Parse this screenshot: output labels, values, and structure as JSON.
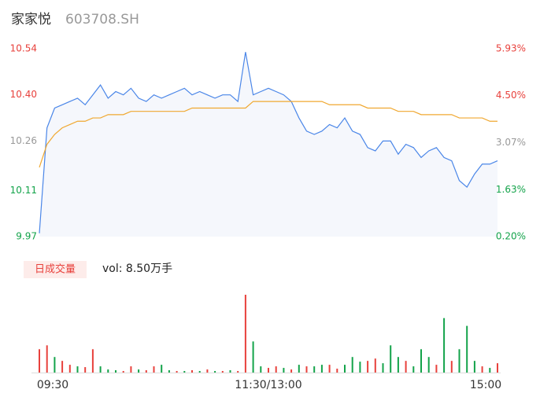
{
  "chart_data": [
    {
      "type": "line",
      "title": "家家悦",
      "subtitle": "603708.SH",
      "x": [
        0,
        4,
        8,
        12,
        16,
        20,
        24,
        28,
        32,
        36,
        40,
        44,
        48,
        52,
        56,
        60,
        64,
        68,
        72,
        76,
        80,
        84,
        88,
        92,
        96,
        100,
        104,
        108,
        112,
        116,
        120,
        124,
        128,
        132,
        136,
        140,
        144,
        148,
        152,
        156,
        160,
        164,
        168,
        172,
        176,
        180,
        184,
        188,
        192,
        196,
        200,
        204,
        208,
        212,
        216,
        220,
        224,
        228,
        232,
        236,
        240
      ],
      "xlim": [
        0,
        240
      ],
      "series": [
        {
          "color": "#4a86e8",
          "values": [
            9.98,
            10.3,
            10.36,
            10.37,
            10.38,
            10.39,
            10.37,
            10.4,
            10.43,
            10.39,
            10.41,
            10.4,
            10.42,
            10.39,
            10.38,
            10.4,
            10.39,
            10.4,
            10.41,
            10.42,
            10.4,
            10.41,
            10.4,
            10.39,
            10.4,
            10.4,
            10.38,
            10.53,
            10.4,
            10.41,
            10.42,
            10.41,
            10.4,
            10.38,
            10.33,
            10.29,
            10.28,
            10.29,
            10.31,
            10.3,
            10.33,
            10.29,
            10.28,
            10.24,
            10.23,
            10.26,
            10.26,
            10.22,
            10.25,
            10.24,
            10.21,
            10.23,
            10.24,
            10.21,
            10.2,
            10.14,
            10.12,
            10.16,
            10.19,
            10.19,
            10.2
          ]
        },
        {
          "color": "#f0a830",
          "values": [
            10.18,
            10.25,
            10.28,
            10.3,
            10.31,
            10.32,
            10.32,
            10.33,
            10.33,
            10.34,
            10.34,
            10.34,
            10.35,
            10.35,
            10.35,
            10.35,
            10.35,
            10.35,
            10.35,
            10.35,
            10.36,
            10.36,
            10.36,
            10.36,
            10.36,
            10.36,
            10.36,
            10.36,
            10.38,
            10.38,
            10.38,
            10.38,
            10.38,
            10.38,
            10.38,
            10.38,
            10.38,
            10.38,
            10.37,
            10.37,
            10.37,
            10.37,
            10.37,
            10.36,
            10.36,
            10.36,
            10.36,
            10.35,
            10.35,
            10.35,
            10.34,
            10.34,
            10.34,
            10.34,
            10.34,
            10.33,
            10.33,
            10.33,
            10.33,
            10.32,
            10.32
          ]
        }
      ],
      "ylim": [
        9.97,
        10.54
      ],
      "yticks": [
        10.54,
        {
          "value": 10.4,
          "label": "10.40"
        },
        10.26,
        10.11,
        9.97
      ],
      "ytick_colors": [
        "#e8413c",
        "#e8413c",
        "#999999",
        "#13a34a",
        "#13a34a"
      ],
      "y2lim": [
        0.2,
        5.93
      ],
      "y2ticks": [
        {
          "value": 5.93,
          "label": "5.93%"
        },
        {
          "value": 4.5,
          "label": "4.50%"
        },
        {
          "value": 3.07,
          "label": "3.07%"
        },
        {
          "value": 1.63,
          "label": "1.63%"
        },
        {
          "value": 0.2,
          "label": "0.20%"
        }
      ],
      "y2tick_colors": [
        "#e8413c",
        "#e8413c",
        "#999999",
        "#13a34a",
        "#13a34a"
      ]
    },
    {
      "type": "bar",
      "label": "日成交量",
      "summary": "vol: 8.50万手",
      "x": [
        0,
        4,
        8,
        12,
        16,
        20,
        24,
        28,
        32,
        36,
        40,
        44,
        48,
        52,
        56,
        60,
        64,
        68,
        72,
        76,
        80,
        84,
        88,
        92,
        96,
        100,
        104,
        108,
        112,
        116,
        120,
        124,
        128,
        132,
        136,
        140,
        144,
        148,
        152,
        156,
        160,
        164,
        168,
        172,
        176,
        180,
        184,
        188,
        192,
        196,
        200,
        204,
        208,
        212,
        216,
        220,
        224,
        228,
        232,
        236,
        240
      ],
      "xlim": [
        0,
        240
      ],
      "values": [
        30,
        35,
        20,
        15,
        10,
        8,
        7,
        30,
        8,
        4,
        3,
        2,
        8,
        4,
        3,
        8,
        10,
        3,
        2,
        2,
        3,
        2,
        4,
        2,
        2,
        3,
        2,
        100,
        40,
        8,
        6,
        8,
        6,
        4,
        10,
        8,
        8,
        10,
        10,
        5,
        10,
        20,
        14,
        15,
        18,
        12,
        35,
        20,
        15,
        8,
        30,
        20,
        10,
        70,
        15,
        30,
        60,
        15,
        8,
        6,
        12
      ],
      "colors": [
        "#e8413c",
        "#e8413c",
        "#13a34a",
        "#e8413c",
        "#e8413c",
        "#13a34a",
        "#e8413c",
        "#e8413c",
        "#13a34a",
        "#13a34a",
        "#13a34a",
        "#e8413c",
        "#e8413c",
        "#13a34a",
        "#e8413c",
        "#e8413c",
        "#13a34a",
        "#13a34a",
        "#e8413c",
        "#13a34a",
        "#e8413c",
        "#13a34a",
        "#e8413c",
        "#13a34a",
        "#e8413c",
        "#13a34a",
        "#e8413c",
        "#e8413c",
        "#13a34a",
        "#13a34a",
        "#e8413c",
        "#e8413c",
        "#13a34a",
        "#e8413c",
        "#13a34a",
        "#e8413c",
        "#13a34a",
        "#13a34a",
        "#e8413c",
        "#e8413c",
        "#13a34a",
        "#13a34a",
        "#13a34a",
        "#e8413c",
        "#e8413c",
        "#13a34a",
        "#13a34a",
        "#13a34a",
        "#e8413c",
        "#13a34a",
        "#13a34a",
        "#13a34a",
        "#e8413c",
        "#13a34a",
        "#e8413c",
        "#13a34a",
        "#13a34a",
        "#13a34a",
        "#e8413c",
        "#13a34a",
        "#e8413c"
      ],
      "ylim": [
        0,
        100
      ],
      "xticks": [
        {
          "value": 0,
          "label": "09:30"
        },
        {
          "value": 120,
          "label": "11:30/13:00"
        },
        {
          "value": 240,
          "label": "15:00"
        }
      ]
    }
  ]
}
